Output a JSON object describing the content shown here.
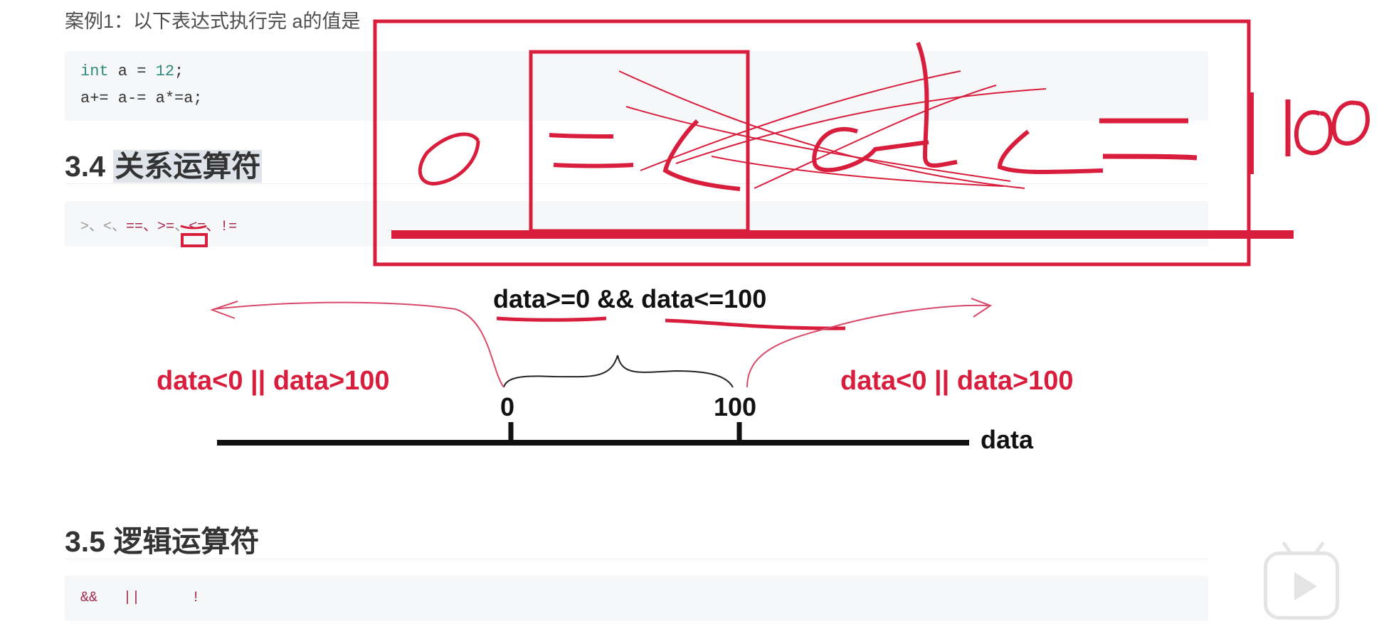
{
  "doc": {
    "case_text": "案例1：以下表达式执行完 a的值是",
    "code1": {
      "kw": "int",
      "line1_rest": " a = ",
      "line1_num": "12",
      "line1_end": ";",
      "line2": "a+= a-= a*=a;"
    },
    "section_34": {
      "num": "3.4 ",
      "title": "关系运算符"
    },
    "relational_ops": {
      "gt": ">、",
      "lt": "<、",
      "eq": "==、",
      "ge": ">=",
      "sep": "、",
      "le": "<=、",
      "ne": "!="
    },
    "section_35": {
      "num": "3.5 ",
      "title": "逻辑运算符"
    },
    "logical_ops": {
      "and": "&&",
      "or": "||",
      "not": "!"
    }
  },
  "diagram": {
    "range_expr": "data>=0 && data<=100",
    "left_label": "data<0 || data>100",
    "right_label": "data<0 || data>100",
    "tick_0": "0",
    "tick_100": "100",
    "axis_label": "data"
  },
  "colors": {
    "accent_red": "#d81e3c",
    "code_bg": "#f6f7f8",
    "ink": "#111111"
  },
  "icons": {
    "player": "bilibili-play-icon"
  }
}
